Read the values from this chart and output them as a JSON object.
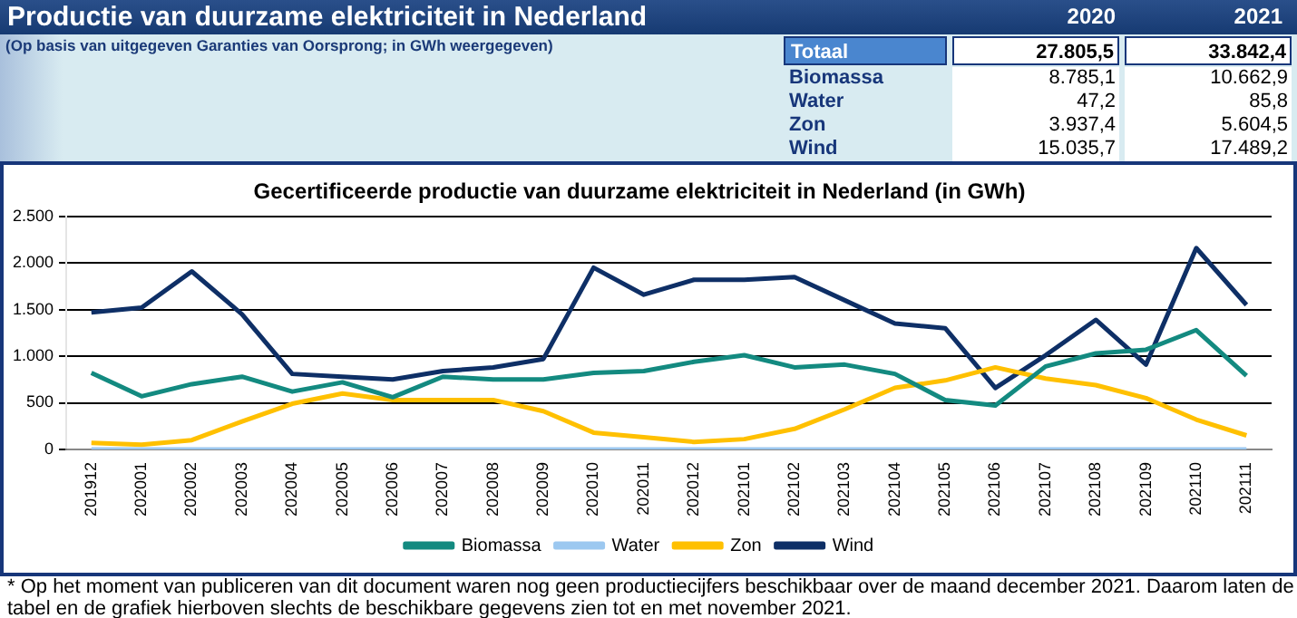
{
  "chart_data": {
    "type": "line",
    "title": "Gecertificeerde productie van duurzame elektriciteit in Nederland (in GWh)",
    "categories": [
      "201912",
      "202001",
      "202002",
      "202003",
      "202004",
      "202005",
      "202006",
      "202007",
      "202008",
      "202009",
      "202010",
      "202011",
      "202012",
      "202101",
      "202102",
      "202103",
      "202104",
      "202105",
      "202106",
      "202107",
      "202108",
      "202109",
      "202110",
      "202111"
    ],
    "series": [
      {
        "name": "Biomassa",
        "color": "#138a80",
        "values": [
          820,
          570,
          700,
          780,
          620,
          720,
          560,
          780,
          750,
          750,
          820,
          840,
          940,
          1010,
          880,
          910,
          810,
          530,
          470,
          890,
          1030,
          1070,
          1280,
          790
        ]
      },
      {
        "name": "Water",
        "color": "#9cc8f0",
        "values": [
          0,
          0,
          0,
          0,
          0,
          0,
          0,
          0,
          0,
          0,
          0,
          0,
          0,
          0,
          0,
          0,
          0,
          0,
          0,
          0,
          0,
          0,
          0,
          0
        ]
      },
      {
        "name": "Zon",
        "color": "#ffc000",
        "values": [
          70,
          50,
          100,
          300,
          490,
          600,
          530,
          530,
          530,
          410,
          180,
          130,
          80,
          110,
          220,
          430,
          660,
          740,
          880,
          760,
          690,
          550,
          320,
          150
        ]
      },
      {
        "name": "Wind",
        "color": "#0e2f66",
        "values": [
          1470,
          1520,
          1910,
          1450,
          810,
          780,
          750,
          840,
          880,
          970,
          1950,
          1660,
          1820,
          1820,
          1850,
          1600,
          1350,
          1300,
          660,
          1010,
          1390,
          910,
          2160,
          1550
        ]
      }
    ],
    "ylim": [
      0,
      2500
    ],
    "yticks": [
      0,
      {
        "value": 500,
        "label": "500"
      },
      {
        "value": 1000,
        "label": "1.000"
      },
      {
        "value": 1500,
        "label": "1.500"
      },
      {
        "value": 2000,
        "label": "2.000"
      },
      {
        "value": 2500,
        "label": "2.500"
      }
    ],
    "grid": "y",
    "legend": "bottom",
    "marker": "none",
    "line_style": "solid",
    "annotations": [
      "Productie van duurzame elektriciteit in Nederland",
      "(Op basis van uitgegeven  Garanties van Oorsprong; in GWh weergegeven)",
      "2020",
      "2021",
      "Totaal",
      "27.805,5",
      "33.842,4",
      "Biomassa",
      "8.785,1",
      "10.662,9",
      "Water",
      "47,2",
      "85,8",
      "Zon",
      "3.937,4",
      "5.604,5",
      "Wind",
      "15.035,7",
      "17.489,2",
      "* Op het moment van publiceren van dit document waren nog geen productiecijfers beschikbaar over de maand december 2021. Daarom laten de tabel en de grafiek hierboven slechts de beschikbare gegevens zien tot en met november 2021."
    ]
  }
}
